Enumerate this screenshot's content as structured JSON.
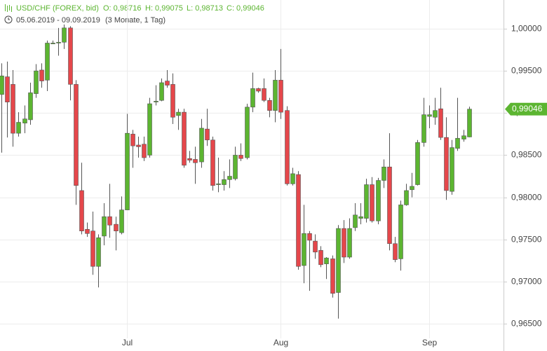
{
  "header": {
    "symbol": "USD/CHF (FOREX, bid)",
    "open": "O: 0,98716",
    "high": "H: 0,99075",
    "low": "L: 0,98713",
    "close": "C: 0,99046",
    "range": "05.06.2019 - 09.09.2019",
    "period": "(3 Monate, 1 Tag)"
  },
  "chart_data": {
    "type": "candlestick",
    "open": [
      0.9922,
      0.9943,
      0.9934,
      0.9876,
      0.9888,
      0.9892,
      0.9923,
      0.9951,
      0.9939,
      0.9982,
      0.9983,
      0.9984,
      1.0001,
      0.9934,
      0.9808,
      0.9762,
      0.976,
      0.9718,
      0.9754,
      0.9777,
      0.9768,
      0.9758,
      0.9785,
      0.9875,
      0.9862,
      0.9863,
      0.985,
      0.9913,
      0.9915,
      0.9938,
      0.9934,
      0.9897,
      0.9901,
      0.9846,
      0.9845,
      0.9842,
      0.9881,
      0.9868,
      0.9815,
      0.9815,
      0.9821,
      0.9822,
      0.985,
      0.9847,
      0.9907,
      0.9929,
      0.9929,
      0.9915,
      0.9903,
      0.9939,
      0.9903,
      0.9816,
      0.9827,
      0.9719,
      0.9757,
      0.9748,
      0.9737,
      0.9721,
      0.9727,
      0.9687,
      0.9763,
      0.9729,
      0.9764,
      0.9775,
      0.9775,
      0.9815,
      0.9772,
      0.982,
      0.9836,
      0.9745,
      0.9727,
      0.9791,
      0.9809,
      0.9815,
      0.9865,
      0.9896,
      0.9895,
      0.9905,
      0.9871,
      0.9807,
      0.9858,
      0.9869,
      0.98716
    ],
    "high": [
      0.9959,
      0.9961,
      0.9951,
      0.9901,
      0.9909,
      0.9936,
      0.9958,
      0.9959,
      0.9986,
      0.9986,
      1.0001,
      1.0005,
      1.0003,
      0.9939,
      0.9841,
      0.977,
      0.9783,
      0.9756,
      0.9793,
      0.9816,
      0.9777,
      0.9801,
      0.9899,
      0.988,
      0.9872,
      0.9872,
      0.9918,
      0.9933,
      0.9941,
      0.9951,
      0.9947,
      0.9905,
      0.9905,
      0.9855,
      0.986,
      0.9893,
      0.9905,
      0.9872,
      0.9847,
      0.9831,
      0.9845,
      0.986,
      0.9864,
      0.9911,
      0.9948,
      0.993,
      0.9941,
      0.9918,
      0.9951,
      0.9976,
      0.9908,
      0.9835,
      0.9831,
      0.9791,
      0.976,
      0.9756,
      0.9742,
      0.9729,
      0.9731,
      0.9767,
      0.9773,
      0.9775,
      0.9793,
      0.9793,
      0.9822,
      0.9824,
      0.9823,
      0.9845,
      0.9876,
      0.9753,
      0.9796,
      0.9816,
      0.9829,
      0.9868,
      0.9918,
      0.9909,
      0.9918,
      0.993,
      0.9895,
      0.9868,
      0.9918,
      0.988,
      0.99075
    ],
    "low": [
      0.9853,
      0.9871,
      0.986,
      0.9872,
      0.9876,
      0.9886,
      0.9918,
      0.993,
      0.9926,
      0.9982,
      0.9968,
      0.9976,
      0.9915,
      0.9791,
      0.9756,
      0.9753,
      0.9708,
      0.9693,
      0.9743,
      0.9752,
      0.9737,
      0.9756,
      0.9785,
      0.9835,
      0.9847,
      0.9843,
      0.9847,
      0.9909,
      0.9914,
      0.993,
      0.9887,
      0.988,
      0.9835,
      0.9841,
      0.9816,
      0.9835,
      0.9861,
      0.9808,
      0.9806,
      0.9808,
      0.9811,
      0.982,
      0.9843,
      0.9845,
      0.9901,
      0.9924,
      0.9913,
      0.9895,
      0.9889,
      0.9893,
      0.9814,
      0.9814,
      0.9714,
      0.9698,
      0.9689,
      0.9727,
      0.9717,
      0.9703,
      0.9681,
      0.9656,
      0.9722,
      0.9727,
      0.976,
      0.9768,
      0.977,
      0.977,
      0.9768,
      0.9811,
      0.9737,
      0.9723,
      0.9713,
      0.979,
      0.98,
      0.9814,
      0.986,
      0.9882,
      0.9886,
      0.9868,
      0.9797,
      0.9803,
      0.9855,
      0.9866,
      0.98713
    ],
    "close": [
      0.9944,
      0.9913,
      0.9876,
      0.9889,
      0.9893,
      0.9924,
      0.995,
      0.9938,
      0.9983,
      0.9983,
      0.9984,
      1.0001,
      0.9934,
      0.9814,
      0.976,
      0.9757,
      0.9718,
      0.9752,
      0.9777,
      0.9767,
      0.976,
      0.9785,
      0.9876,
      0.9861,
      0.986,
      0.9847,
      0.9911,
      0.9914,
      0.9936,
      0.9933,
      0.9895,
      0.9901,
      0.9838,
      0.9844,
      0.9841,
      0.9882,
      0.9868,
      0.9814,
      0.9816,
      0.9821,
      0.9825,
      0.985,
      0.9846,
      0.9907,
      0.9929,
      0.9926,
      0.9915,
      0.9903,
      0.9939,
      0.9901,
      0.9816,
      0.9828,
      0.9718,
      0.9757,
      0.9749,
      0.9735,
      0.972,
      0.9728,
      0.9686,
      0.9763,
      0.9729,
      0.9763,
      0.9779,
      0.9777,
      0.9815,
      0.9772,
      0.982,
      0.9836,
      0.9745,
      0.9726,
      0.9791,
      0.9808,
      0.9813,
      0.9865,
      0.9898,
      0.9898,
      0.9903,
      0.9871,
      0.9808,
      0.9859,
      0.987,
      0.9873,
      0.99046
    ],
    "up_color": "#5cb531",
    "down_color": "#e5474b",
    "xlim": [
      -0.25,
      88.07
    ],
    "xticks": [
      {
        "value": 22,
        "label": "Jul"
      },
      {
        "value": 49,
        "label": "Aug"
      },
      {
        "value": 75,
        "label": "Sep"
      }
    ],
    "ylim": [
      0.96176,
      1.00341
    ],
    "yticks": [
      {
        "value": 1.0,
        "label": "1,00000"
      },
      {
        "value": 0.995,
        "label": "0,99500"
      },
      {
        "value": 0.99,
        "label": "0,99000"
      },
      {
        "value": 0.985,
        "label": "0,98500"
      },
      {
        "value": 0.98,
        "label": "0,98000"
      },
      {
        "value": 0.975,
        "label": "0,97500"
      },
      {
        "value": 0.97,
        "label": "0,97000"
      },
      {
        "value": 0.965,
        "label": "0,96500"
      }
    ],
    "grid": true,
    "last_price": {
      "value": 0.99046,
      "label": "0,99046"
    }
  }
}
